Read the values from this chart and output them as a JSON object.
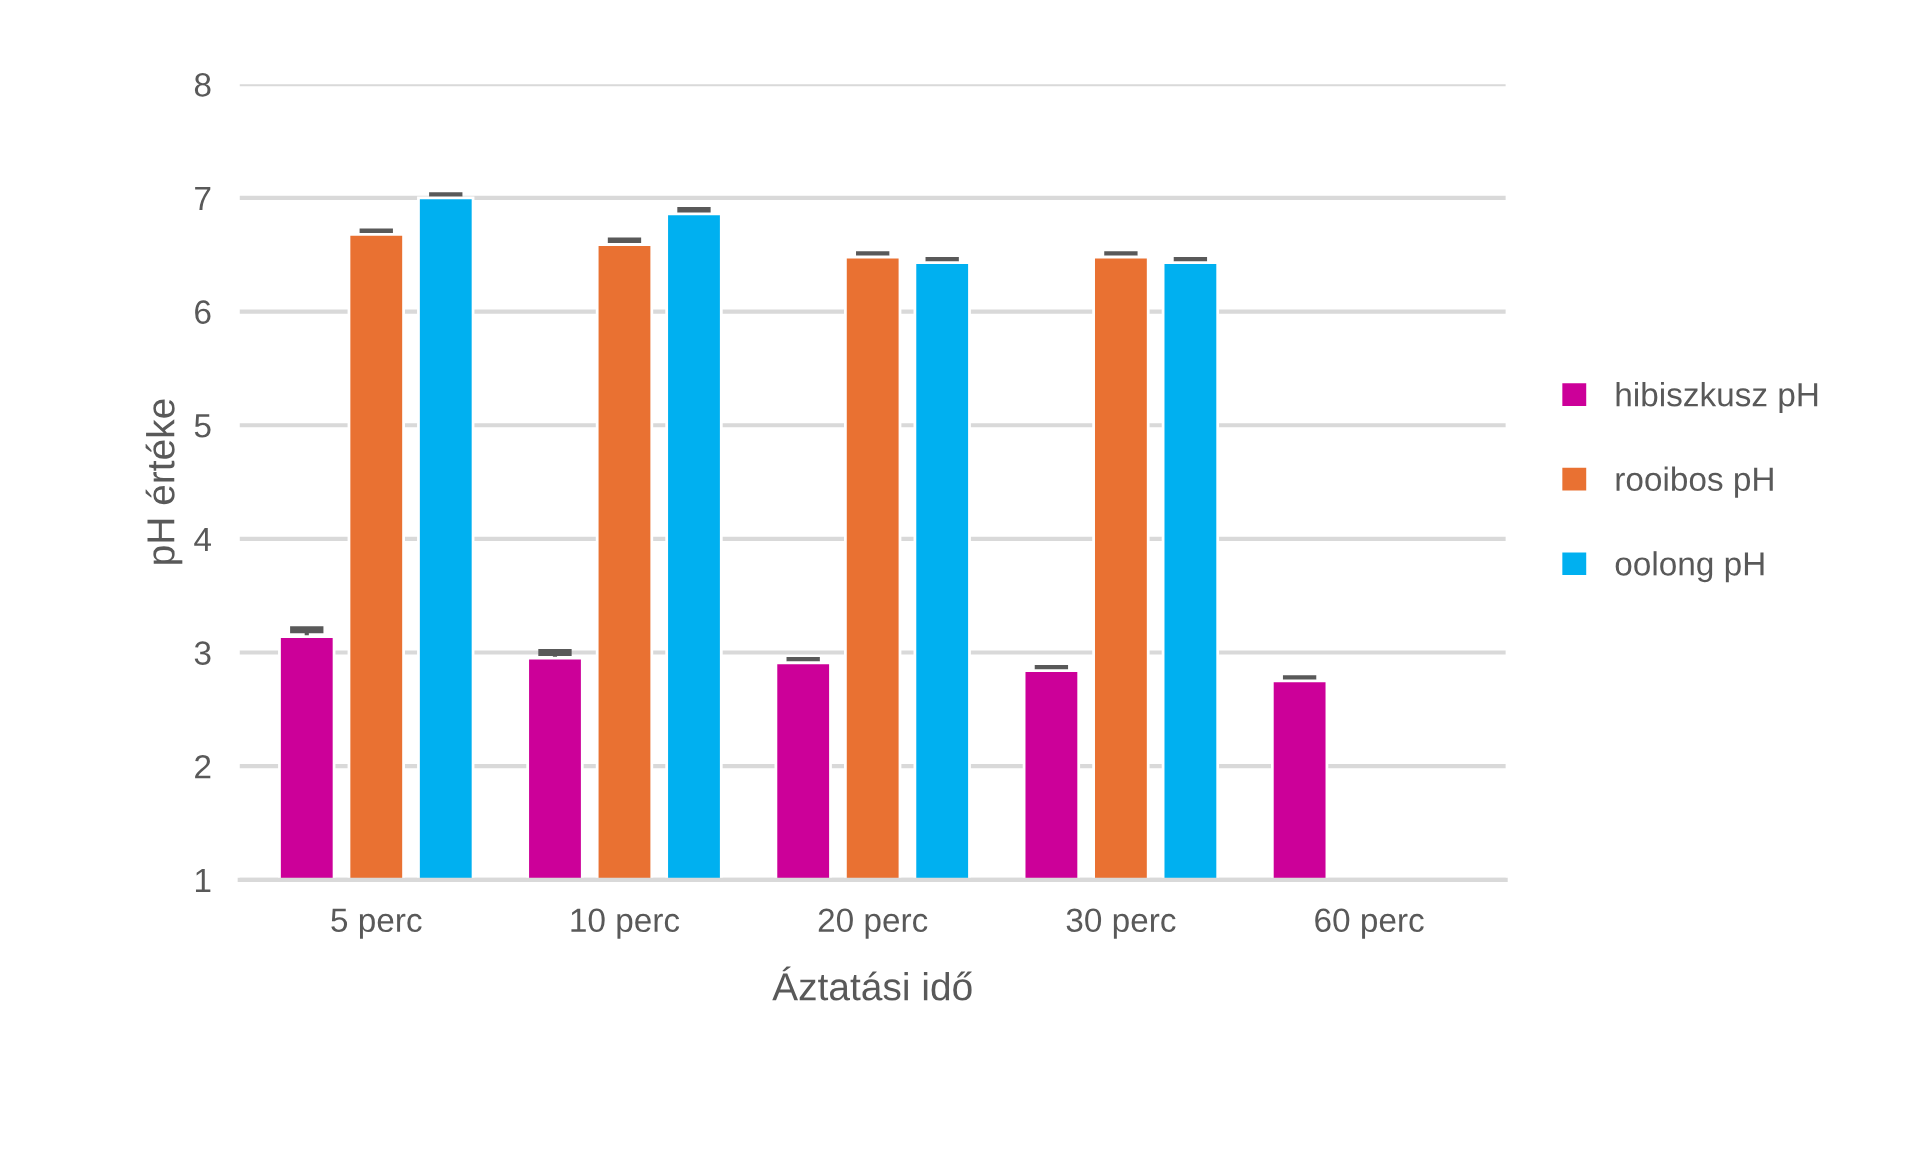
{
  "chart_data": {
    "type": "bar",
    "xlabel": "Áztatási idő",
    "ylabel": "pH értéke",
    "categories": [
      "5 perc",
      "10 perc",
      "20 perc",
      "30 perc",
      "60 perc"
    ],
    "series": [
      {
        "name": "hibiszkusz pH",
        "color": "#cc0099",
        "values": [
          3.14,
          2.95,
          2.91,
          2.84,
          2.75
        ],
        "errors": [
          0.06,
          0.05,
          0.02,
          0.02,
          0.02
        ]
      },
      {
        "name": "rooibos pH",
        "color": "#e97132",
        "values": [
          6.68,
          6.59,
          6.48,
          6.48,
          null
        ],
        "errors": [
          0.02,
          0.03,
          0.02,
          0.02,
          null
        ]
      },
      {
        "name": "oolong pH",
        "color": "#00b0f0",
        "values": [
          7.0,
          6.86,
          6.43,
          6.43,
          null
        ],
        "errors": [
          0.02,
          0.03,
          0.02,
          0.02,
          null
        ]
      }
    ],
    "ylim": [
      1,
      8
    ],
    "yticks": [
      1,
      2,
      3,
      4,
      5,
      6,
      7,
      8
    ],
    "grid": "y",
    "legend": "right"
  }
}
